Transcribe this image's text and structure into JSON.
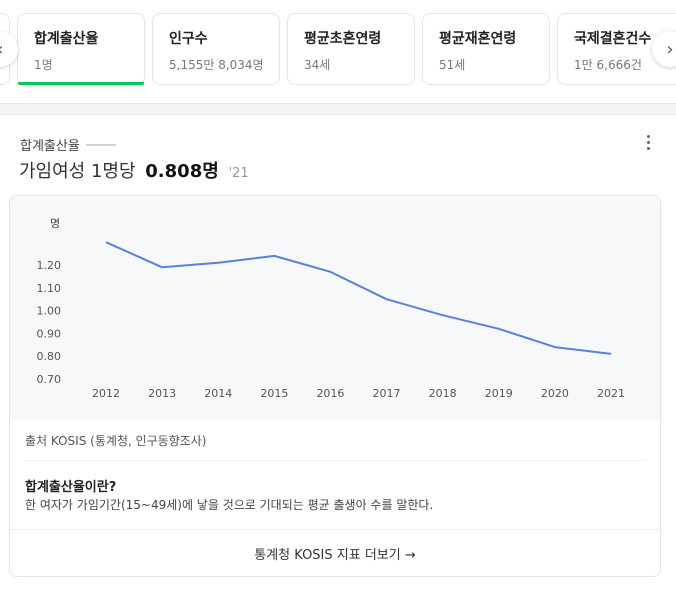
{
  "tabs": [
    {
      "label": "합계출산율",
      "value": "1명",
      "active": true
    },
    {
      "label": "인구수",
      "value": "5,155만 8,034명"
    },
    {
      "label": "평균초혼연령",
      "value": "34세"
    },
    {
      "label": "평균재혼연령",
      "value": "51세"
    },
    {
      "label": "국제결혼건수",
      "value": "1만 6,666건"
    }
  ],
  "nav": {
    "prev_icon": "chevron-left-icon",
    "next_icon": "chevron-right-icon"
  },
  "stat": {
    "name": "합계출산율",
    "headline_prefix": "가임여성 1명당",
    "headline_value": "0.808명",
    "headline_year": "'21"
  },
  "chart_data": {
    "type": "line",
    "ylabel": "명",
    "x": [
      "2012",
      "2013",
      "2014",
      "2015",
      "2016",
      "2017",
      "2018",
      "2019",
      "2020",
      "2021"
    ],
    "series": [
      {
        "values": [
          1.3,
          1.19,
          1.21,
          1.24,
          1.17,
          1.05,
          0.98,
          0.92,
          0.84,
          0.81
        ]
      }
    ],
    "yticks": [
      "0.70",
      "0.80",
      "0.90",
      "1.00",
      "1.10",
      "1.20"
    ],
    "ylim": [
      0.7,
      1.3
    ],
    "line_color": "#5b7fdf"
  },
  "source": "출처 KOSIS (통계청, 인구동향조사)",
  "definition": {
    "title": "합계출산율이란?",
    "text": "한 여자가 가임기간(15~49세)에 낳을 것으로 기대되는 평균 출생아 수를 말한다."
  },
  "more_link": "통계청 KOSIS 지표 더보기 →"
}
